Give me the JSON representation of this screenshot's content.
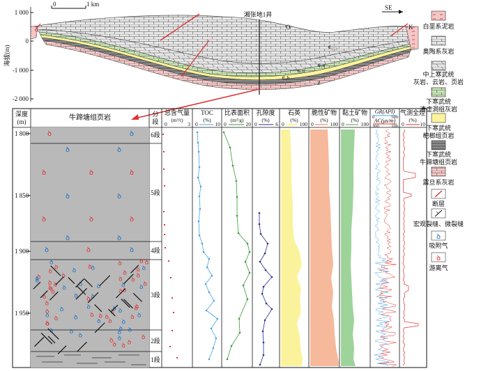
{
  "cross_section": {
    "y_axis_label": "海拔(m)",
    "y_ticks": [
      "1 000",
      "0",
      "-1 000",
      "-2 000"
    ],
    "scale_labels": [
      "0",
      "1 km"
    ],
    "orientation": "SE",
    "well_label": "湘张地1井",
    "unit_labels": {
      "O": "O",
      "K": "K",
      "Z": "Z",
      "e3": "∈₂₋₃",
      "e1q": "∈₁q",
      "e1n": "∈₁n",
      "e1b": "∈₁b"
    }
  },
  "column": {
    "headers": {
      "depth": "深度\n(m)",
      "depth_line1": "深度",
      "depth_line2": "(m)",
      "lithology": "牛蹄塘组页岩",
      "segment_line1": "分",
      "segment_line2": "段",
      "gas_line1": "总含气量",
      "gas_line2": "(m³/t)",
      "toc_line1": "TOC",
      "toc_line2": "(%)",
      "ssa_line1": "比表面积",
      "ssa_line2": "(m²/g)",
      "por_line1": "孔隙度",
      "por_line2": "(%)",
      "quartz_line1": "石英",
      "quartz_line2": "(%)",
      "brittle_line1": "脆性矿物",
      "brittle_line2": "(%)",
      "clay_line1": "黏土矿物",
      "clay_line2": "(%)",
      "gr_line": "GR(API)",
      "ac_line": "AC(μs/m)",
      "gas_log_line1": "气测全烃",
      "gas_log_line2": "(%)"
    },
    "scales": {
      "gas": [
        "0",
        "3"
      ],
      "toc": [
        "0",
        "10"
      ],
      "ssa": [
        "0",
        "20"
      ],
      "por": [
        "0",
        "6"
      ],
      "quartz": [
        "0",
        "100"
      ],
      "brittle": [
        "0",
        "100"
      ],
      "clay": [
        "0",
        "100"
      ],
      "gr": [
        "0",
        "500"
      ],
      "ac": [
        "300",
        "100"
      ],
      "gas_log": [
        "0",
        "10"
      ]
    },
    "depth_ticks": [
      "1 800",
      "1 850",
      "1 900",
      "1 950"
    ],
    "segments": [
      "6段",
      "5段",
      "4段",
      "3段",
      "2段",
      "1段"
    ]
  },
  "legend": [
    {
      "label": "白垩系泥岩",
      "icon": "red-mudstone"
    },
    {
      "label": "奥陶系灰岩",
      "icon": "limestone"
    },
    {
      "label": "中上寒武统\n灰岩、云岩、页岩",
      "line1": "中上寒武统",
      "line2": "灰岩、云岩、页岩",
      "icon": "mixed"
    },
    {
      "label": "下寒武统\n清虚洞组灰岩",
      "line1": "下寒武统",
      "line2": "清虚洞组灰岩",
      "icon": "green-limestone"
    },
    {
      "label": "下寒武统\n杷榔组页岩",
      "line1": "下寒武统",
      "line2": "杷榔组页岩",
      "icon": "yellow-shale"
    },
    {
      "label": "下寒武统\n牛蹄塘组页岩",
      "line1": "下寒武统",
      "line2": "牛蹄塘组页岩",
      "icon": "grey-shale"
    },
    {
      "label": "震旦系灰岩",
      "icon": "pink-limestone"
    },
    {
      "label": "断层",
      "icon": "fault"
    },
    {
      "label": "宏观裂缝、微裂缝",
      "icon": "fracture"
    },
    {
      "label": "吸附气",
      "icon": "adsorbed-gas"
    },
    {
      "label": "游离气",
      "icon": "free-gas"
    }
  ],
  "colors": {
    "green": "#c8e6b4",
    "yellow": "#fbf39b",
    "brittle": "#f6b99b",
    "clay": "#9ed49a",
    "grey": "#b9b9b9",
    "red": "#e03030",
    "blue": "#1a6fc4",
    "toc_line": "#4aa3df",
    "ssa_line": "#3a9a3a",
    "por_line": "#2e2e8a"
  }
}
